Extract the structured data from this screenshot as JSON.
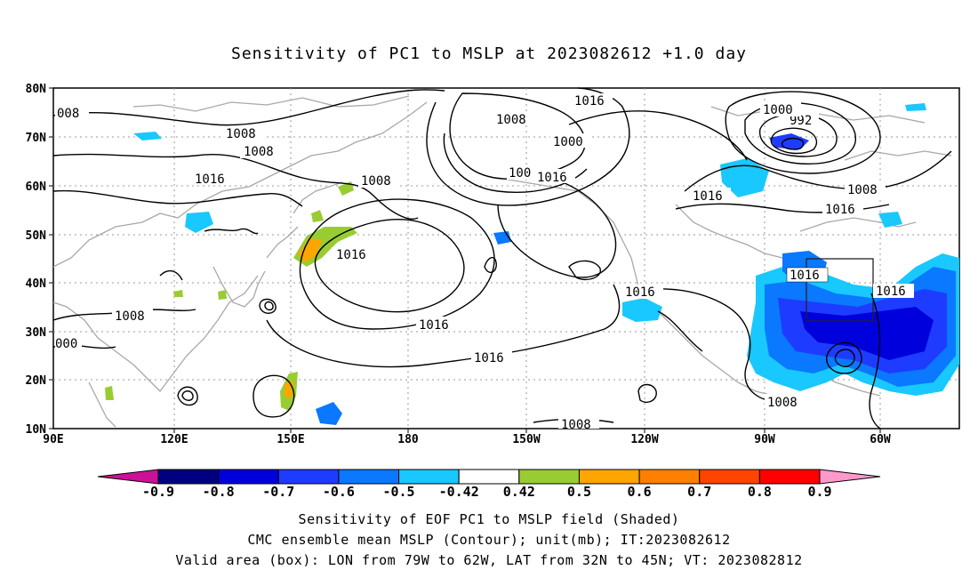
{
  "title": "Sensitivity of PC1 to MSLP at 2023082612 +1.0 day",
  "lat_labels": [
    "80N",
    "70N",
    "60N",
    "50N",
    "40N",
    "30N",
    "20N",
    "10N"
  ],
  "lon_labels": [
    "90E",
    "120E",
    "150E",
    "180",
    "150W",
    "120W",
    "90W",
    "60W"
  ],
  "contour_labels": [
    "1016",
    "1008",
    "1008",
    "1000",
    "992",
    "1008",
    "1008",
    "1008",
    "1016",
    "1016",
    "1000",
    "1008",
    "1016",
    "1016",
    "1016",
    "1016",
    "1016",
    "1016",
    "1016",
    "1016",
    "1008",
    "1008",
    "1008",
    "000",
    "008",
    "100"
  ],
  "colorbar": {
    "labels": [
      "-0.9",
      "-0.8",
      "-0.7",
      "-0.6",
      "-0.5",
      "-0.42",
      "0.42",
      "0.5",
      "0.6",
      "0.7",
      "0.8",
      "0.9"
    ],
    "colors": [
      "#000080",
      "#0000dd",
      "#1e3cff",
      "#0a78ff",
      "#18c8ff",
      "#ffffff",
      "#99cc33",
      "#ffa500",
      "#ff7f00",
      "#ff4400",
      "#ff0000"
    ],
    "low_color": "#cc1199",
    "high_color": "#ff99cc"
  },
  "footer": {
    "line1": "Sensitivity of EOF PC1 to MSLP field (Shaded)",
    "line2": "CMC ensemble mean MSLP (Contour); unit(mb); IT:2023082612",
    "line3": "Valid area (box): LON from 79W to 62W, LAT from 32N to 45N; VT: 2023082812"
  },
  "valid_box": {
    "lon_min": -79,
    "lon_max": -62,
    "lat_min": 32,
    "lat_max": 45
  },
  "map_extent": {
    "lon_min": 90,
    "lon_max": 325,
    "lat_min": 10,
    "lat_max": 80
  }
}
